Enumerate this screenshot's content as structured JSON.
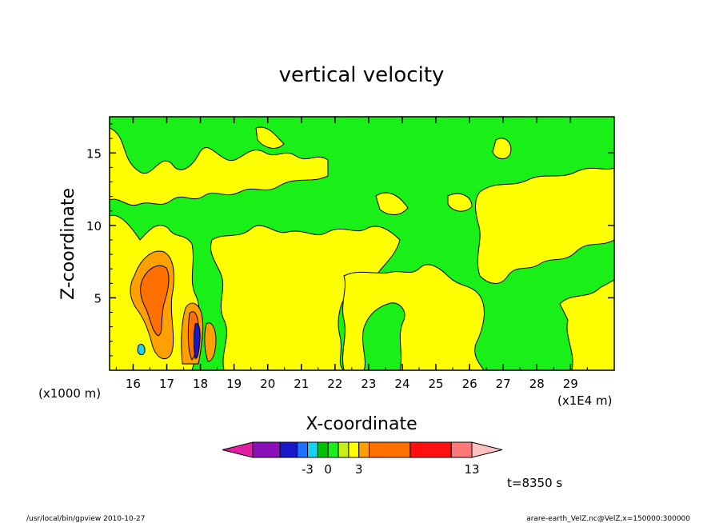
{
  "chart_data": {
    "type": "heatmap",
    "title": "vertical velocity",
    "xlabel": "X-coordinate",
    "ylabel": "Z-coordinate",
    "x_unit_left": "(x1000 m)",
    "x_unit_right": "(x1E4 m)",
    "xlim": [
      15.3,
      30.3
    ],
    "ylim": [
      0,
      17.5
    ],
    "x_ticks": [
      16,
      17,
      18,
      19,
      20,
      21,
      22,
      23,
      24,
      25,
      26,
      27,
      28,
      29
    ],
    "x_tick_labels": [
      "16",
      "17",
      "18",
      "19",
      "20",
      "21",
      "22",
      "23",
      "24",
      "25",
      "26",
      "27",
      "28",
      "29"
    ],
    "y_ticks": [
      5,
      10,
      15
    ],
    "y_tick_labels": [
      "5",
      "10",
      "15"
    ],
    "colorbar": {
      "colors": [
        "#e020a0",
        "#8a10b8",
        "#1818c8",
        "#2070ff",
        "#18d0f0",
        "#00c000",
        "#18f018",
        "#c8f018",
        "#ffff00",
        "#ffa000",
        "#ff7000",
        "#ff1010",
        "#ff7878",
        "#ffc0c0"
      ],
      "labels": [
        {
          "text": "-3",
          "after_index": 3
        },
        {
          "text": "0",
          "after_index": 5
        },
        {
          "text": "3",
          "after_index": 8
        },
        {
          "text": "13",
          "after_index": 12
        }
      ]
    },
    "field_colors": {
      "green": "#18f018",
      "yellow": "#ffff00",
      "orange_light": "#ffa000",
      "orange": "#ff7000",
      "cyan": "#18d0f0",
      "blue": "#1818c8"
    },
    "time_label": "t=8350 s"
  },
  "footer": {
    "left": "/usr/local/bin/gpview   2010-10-27",
    "right": "arare-earth_VelZ.nc@VelZ,x=150000:300000"
  }
}
